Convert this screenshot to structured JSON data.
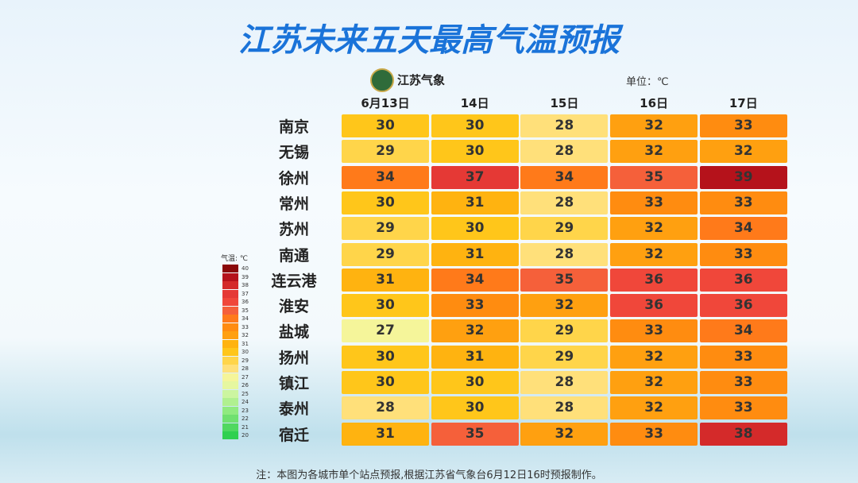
{
  "header": {
    "title": "江苏未来五天最高气温预报",
    "logo": "江苏气象",
    "unit": "单位：℃"
  },
  "table": {
    "columns": [
      "6月13日",
      "14日",
      "15日",
      "16日",
      "17日"
    ],
    "rows": [
      {
        "city": "南京",
        "values": [
          30,
          30,
          28,
          32,
          33
        ]
      },
      {
        "city": "无锡",
        "values": [
          29,
          30,
          28,
          32,
          32
        ]
      },
      {
        "city": "徐州",
        "values": [
          34,
          37,
          34,
          35,
          39
        ]
      },
      {
        "city": "常州",
        "values": [
          30,
          31,
          28,
          33,
          33
        ]
      },
      {
        "city": "苏州",
        "values": [
          29,
          30,
          29,
          32,
          34
        ]
      },
      {
        "city": "南通",
        "values": [
          29,
          31,
          28,
          32,
          33
        ]
      },
      {
        "city": "连云港",
        "values": [
          31,
          34,
          35,
          36,
          36
        ]
      },
      {
        "city": "淮安",
        "values": [
          30,
          33,
          32,
          36,
          36
        ]
      },
      {
        "city": "盐城",
        "values": [
          27,
          32,
          29,
          33,
          34
        ]
      },
      {
        "city": "扬州",
        "values": [
          30,
          31,
          29,
          32,
          33
        ]
      },
      {
        "city": "镇江",
        "values": [
          30,
          30,
          28,
          32,
          33
        ]
      },
      {
        "city": "泰州",
        "values": [
          28,
          30,
          28,
          32,
          33
        ]
      },
      {
        "city": "宿迁",
        "values": [
          31,
          35,
          32,
          33,
          38
        ]
      }
    ]
  },
  "legend": {
    "title": "气温: ℃",
    "levels": [
      {
        "value": 40,
        "color": "#8b0a0a"
      },
      {
        "value": 39,
        "color": "#b5121b"
      },
      {
        "value": 38,
        "color": "#d42a2a"
      },
      {
        "value": 37,
        "color": "#e53935"
      },
      {
        "value": 36,
        "color": "#f0473a"
      },
      {
        "value": 35,
        "color": "#f5603a"
      },
      {
        "value": 34,
        "color": "#ff7a1a"
      },
      {
        "value": 33,
        "color": "#ff8c10"
      },
      {
        "value": 32,
        "color": "#ffa010"
      },
      {
        "value": 31,
        "color": "#ffb310"
      },
      {
        "value": 30,
        "color": "#ffc61a"
      },
      {
        "value": 29,
        "color": "#ffd54a"
      },
      {
        "value": 28,
        "color": "#ffe07a"
      },
      {
        "value": 27,
        "color": "#f5f59a"
      },
      {
        "value": 26,
        "color": "#e6f7a0"
      },
      {
        "value": 25,
        "color": "#ccf5a0"
      },
      {
        "value": 24,
        "color": "#b0f090"
      },
      {
        "value": 23,
        "color": "#90ea80"
      },
      {
        "value": 22,
        "color": "#70e070"
      },
      {
        "value": 21,
        "color": "#50d860"
      },
      {
        "value": 20,
        "color": "#30d050"
      }
    ]
  },
  "footnote": "注：本图为各城市单个站点预报,根据江苏省气象台6月12日16时预报制作。"
}
